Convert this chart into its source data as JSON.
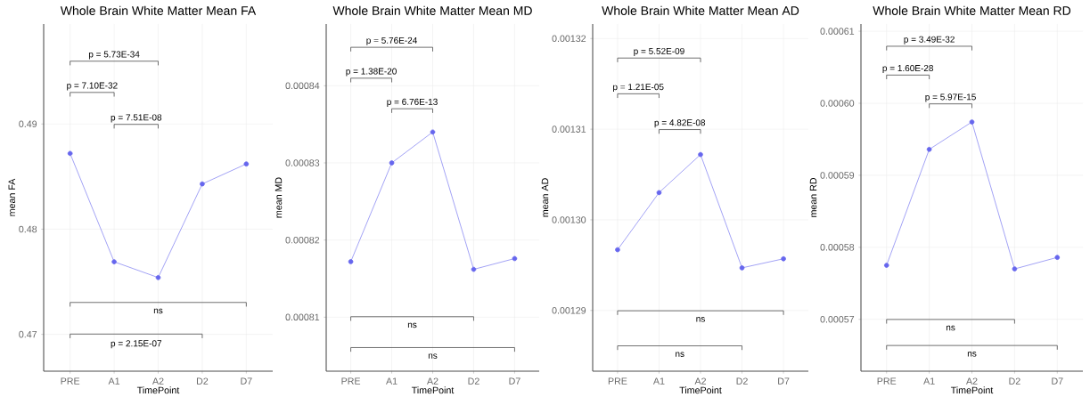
{
  "chart_data": [
    {
      "type": "line",
      "title": "Whole Brain White Matter Mean FA",
      "xlabel": "TimePoint",
      "ylabel": "mean FA",
      "categories": [
        "PRE",
        "A1",
        "A2",
        "D2",
        "D7"
      ],
      "values": [
        0.4872,
        0.4769,
        0.4754,
        0.4843,
        0.4862
      ],
      "color": "#6666ee",
      "marker": "circle",
      "grid": true,
      "ylim": [
        0.4665,
        0.4995
      ],
      "yticks": [
        0.47,
        0.48,
        0.49
      ],
      "annotations": [
        "p = 5.73E-34",
        "p = 7.10E-32",
        "p = 7.51E-08",
        "ns",
        "p = 2.15E-07"
      ]
    },
    {
      "type": "line",
      "title": "Whole Brain White Matter Mean MD",
      "xlabel": "TimePoint",
      "ylabel": "mean MD",
      "categories": [
        "PRE",
        "A1",
        "A2",
        "D2",
        "D7"
      ],
      "values": [
        0.0008172,
        0.00083,
        0.000834,
        0.0008162,
        0.0008176
      ],
      "color": "#6666ee",
      "marker": "circle",
      "grid": true,
      "ylim": [
        0.000803,
        0.000848
      ],
      "yticks": [
        0.00081,
        0.00082,
        0.00083,
        0.00084
      ],
      "annotations": [
        "p = 5.76E-24",
        "p = 1.38E-20",
        "p = 6.76E-13",
        "ns",
        "ns"
      ]
    },
    {
      "type": "line",
      "title": "Whole Brain White Matter Mean AD",
      "xlabel": "TimePoint",
      "ylabel": "mean AD",
      "categories": [
        "PRE",
        "A1",
        "A2",
        "D2",
        "D7"
      ],
      "values": [
        0.0012967,
        0.001303,
        0.0013072,
        0.0012947,
        0.0012957
      ],
      "color": "#6666ee",
      "marker": "circle",
      "grid": true,
      "ylim": [
        0.0012833,
        0.0013216
      ],
      "yticks": [
        0.00129,
        {
          "value": 0.0013,
          "label": "0.00130"
        },
        0.00131,
        0.00132
      ],
      "annotations": [
        "p = 5.52E-09",
        "p = 1.21E-05",
        "p = 4.82E-08",
        "ns",
        "ns"
      ]
    },
    {
      "type": "line",
      "title": "Whole Brain White Matter Mean RD",
      "xlabel": "TimePoint",
      "ylabel": "mean RD",
      "categories": [
        "PRE",
        "A1",
        "A2",
        "D2",
        "D7"
      ],
      "values": [
        0.0005775,
        0.0005936,
        0.0005974,
        0.000577,
        0.0005786
      ],
      "color": "#6666ee",
      "marker": "circle",
      "grid": true,
      "ylim": [
        0.0005628,
        0.000611
      ],
      "yticks": [
        0.00057,
        0.00058,
        0.00059,
        {
          "value": 0.0006,
          "label": "0.00060"
        },
        0.00061
      ],
      "annotations": [
        "p = 3.49E-32",
        "p = 1.60E-28",
        "p = 5.97E-15",
        "ns",
        "ns"
      ]
    }
  ]
}
